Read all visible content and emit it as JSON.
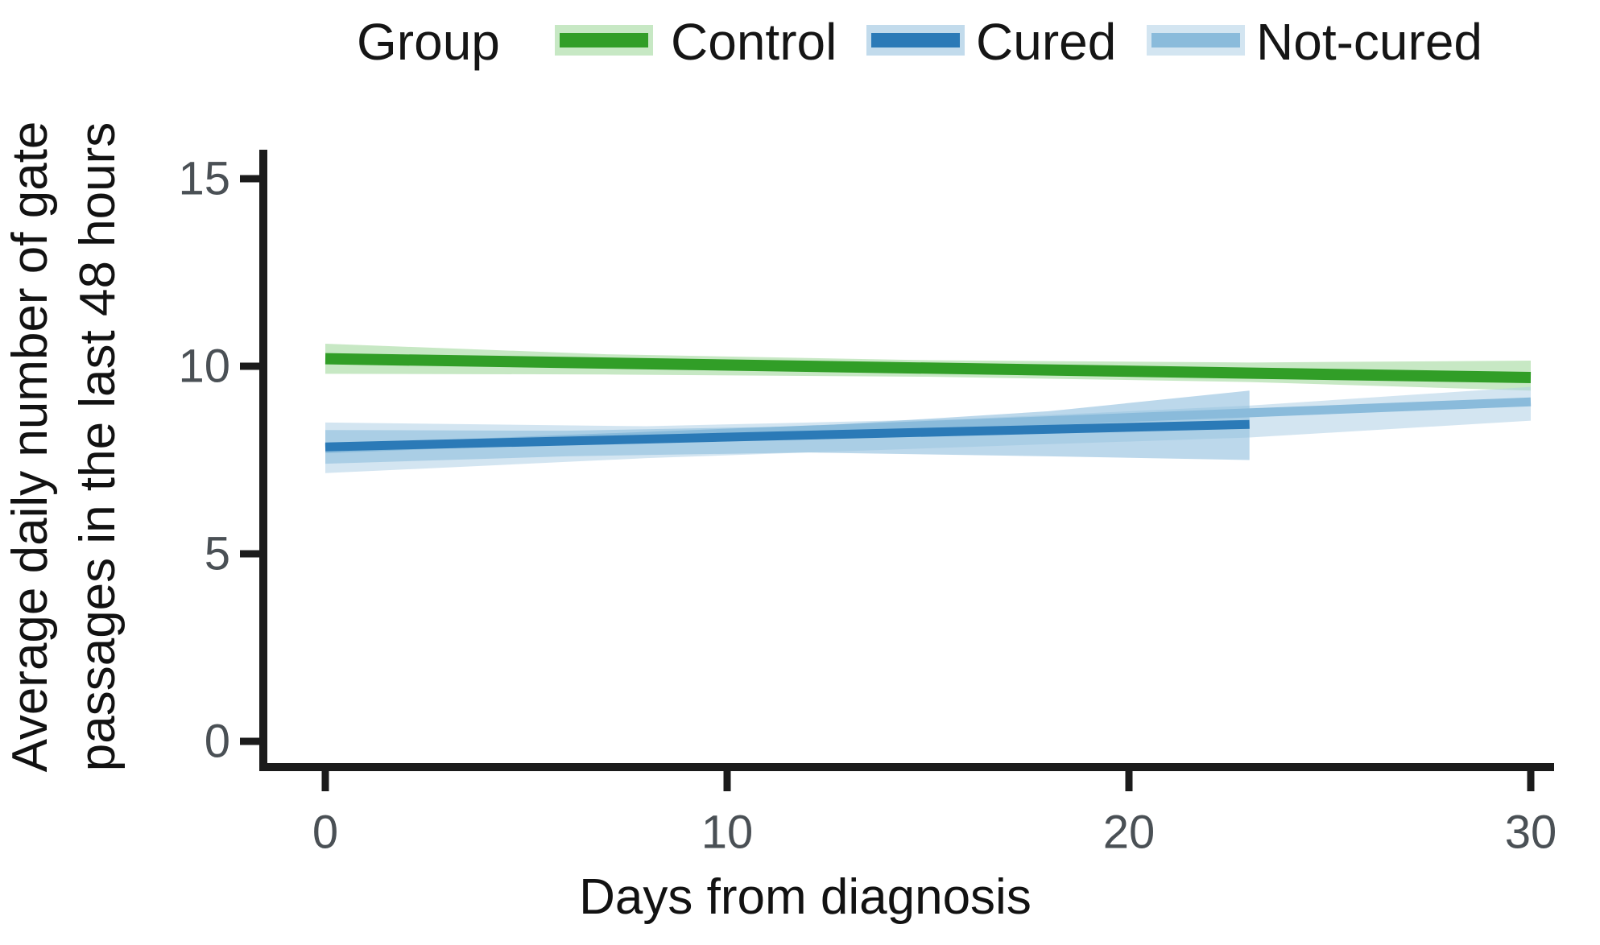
{
  "legend": {
    "title": "Group",
    "items": [
      {
        "id": "control",
        "label": "Control"
      },
      {
        "id": "cured",
        "label": "Cured"
      },
      {
        "id": "notcured",
        "label": "Not-cured"
      }
    ]
  },
  "chart_data": {
    "type": "line",
    "title": "",
    "xlabel": "Days from diagnosis",
    "ylabel": "Average daily number of gate passages in the last 48 hours",
    "ylabel_lines": [
      "Average daily number of gate",
      "passages in the last 48 hours"
    ],
    "xlim": [
      0,
      30
    ],
    "ylim": [
      0,
      15
    ],
    "x_ticks": [
      0,
      10,
      20,
      30
    ],
    "y_ticks": [
      0,
      5,
      10,
      15
    ],
    "grid": false,
    "legend_position": "top",
    "series": [
      {
        "id": "control",
        "name": "Control",
        "line_color": "#319e27",
        "band_color": "#99d693",
        "band_opacity": 0.55,
        "x": [
          0,
          30
        ],
        "y": [
          10.2,
          9.7
        ],
        "ci_x": [
          0,
          7,
          15,
          23,
          30
        ],
        "ci_upper": [
          10.6,
          10.32,
          10.16,
          10.1,
          10.15
        ],
        "ci_lower": [
          9.8,
          9.78,
          9.72,
          9.58,
          9.35
        ]
      },
      {
        "id": "cured",
        "name": "Cured",
        "line_color": "#2b7ab7",
        "band_color": "#8fbedd",
        "band_opacity": 0.6,
        "x": [
          0,
          23
        ],
        "y": [
          7.85,
          8.45
        ],
        "ci_x": [
          0,
          6,
          12,
          18,
          23
        ],
        "ci_upper": [
          8.3,
          8.28,
          8.4,
          8.8,
          9.35
        ],
        "ci_lower": [
          7.4,
          7.6,
          7.7,
          7.6,
          7.5
        ]
      },
      {
        "id": "notcured",
        "name": "Not-cured",
        "line_color": "#8abbdb",
        "band_color": "#aed0e6",
        "band_opacity": 0.55,
        "x": [
          0,
          30
        ],
        "y": [
          7.8,
          9.05
        ],
        "ci_x": [
          0,
          8,
          16,
          23,
          30
        ],
        "ci_upper": [
          8.5,
          8.4,
          8.6,
          8.95,
          9.45
        ],
        "ci_lower": [
          7.15,
          7.55,
          7.85,
          8.1,
          8.55
        ]
      }
    ]
  }
}
